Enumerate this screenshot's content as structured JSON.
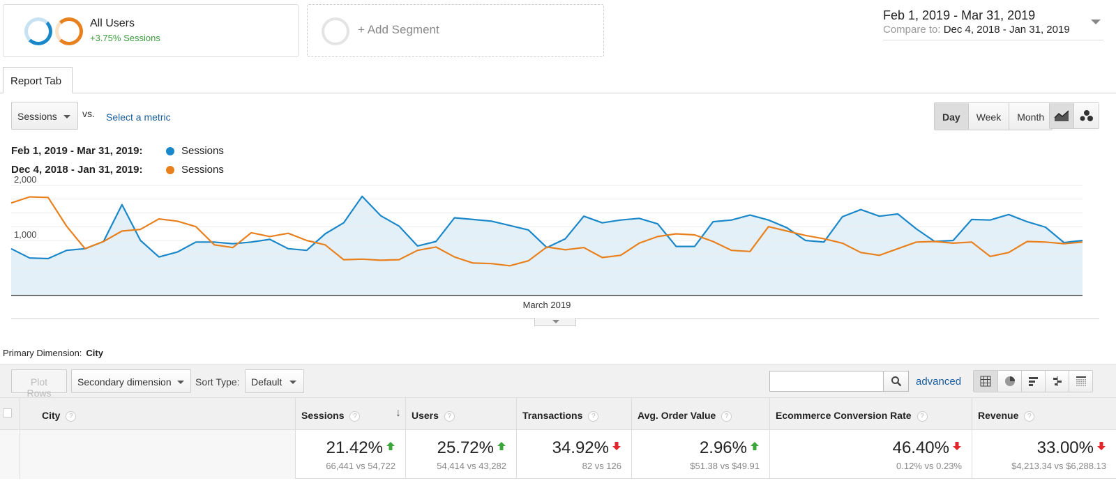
{
  "segments": {
    "active": {
      "title": "All Users",
      "subtitle": "+3.75% Sessions"
    },
    "add_label": "+ Add Segment"
  },
  "date_range": {
    "main": "Feb 1, 2019 - Mar 31, 2019",
    "compare_label": "Compare to:",
    "compare_range": "Dec 4, 2018 - Jan 31, 2019"
  },
  "tabs": {
    "report": "Report Tab"
  },
  "metric_bar": {
    "primary_metric": "Sessions",
    "vs": "vs.",
    "select_metric": "Select a metric",
    "granularity": [
      "Day",
      "Week",
      "Month"
    ],
    "active_granularity": "Day"
  },
  "legend": [
    {
      "range": "Feb 1, 2019 - Mar 31, 2019:",
      "series": "Sessions",
      "color": "#1a87c9"
    },
    {
      "range": "Dec 4, 2018 - Jan 31, 2019:",
      "series": "Sessions",
      "color": "#e8801e"
    }
  ],
  "chart_data": {
    "type": "line",
    "xlabel": "March 2019",
    "ylim": [
      0,
      2100
    ],
    "y_ticks": [
      "2,000",
      "1,000"
    ],
    "y_tick_values": [
      2000,
      1000
    ],
    "grid": true,
    "series": [
      {
        "name": "Sessions",
        "color": "#1a87c9",
        "fill": true,
        "values": [
          850,
          680,
          670,
          820,
          850,
          980,
          1650,
          1000,
          700,
          790,
          970,
          970,
          940,
          970,
          1020,
          850,
          820,
          1120,
          1320,
          1800,
          1450,
          1260,
          900,
          980,
          1410,
          1380,
          1350,
          1270,
          1190,
          870,
          1030,
          1440,
          1320,
          1370,
          1400,
          1300,
          890,
          890,
          1340,
          1370,
          1460,
          1370,
          1230,
          1000,
          970,
          1430,
          1560,
          1440,
          1480,
          1210,
          980,
          1000,
          1380,
          1370,
          1470,
          1340,
          1240,
          960,
          1000
        ]
      },
      {
        "name": "Sessions",
        "color": "#e8801e",
        "fill": false,
        "values": [
          1680,
          1790,
          1780,
          1260,
          850,
          980,
          1170,
          1200,
          1390,
          1350,
          1250,
          920,
          870,
          1140,
          1070,
          1130,
          1000,
          920,
          650,
          660,
          640,
          650,
          820,
          880,
          700,
          590,
          580,
          540,
          630,
          880,
          830,
          870,
          690,
          730,
          950,
          1070,
          1120,
          1100,
          980,
          820,
          800,
          1250,
          1170,
          1090,
          1030,
          950,
          780,
          730,
          850,
          970,
          980,
          950,
          970,
          710,
          780,
          980,
          970,
          940,
          970
        ]
      }
    ]
  },
  "primary_dimension": {
    "label": "Primary Dimension:",
    "value": "City"
  },
  "toolbar": {
    "plot_rows": "Plot Rows",
    "secondary_dimension": "Secondary dimension",
    "sort_type_label": "Sort Type:",
    "sort_type_value": "Default",
    "search_value": "",
    "advanced": "advanced"
  },
  "table": {
    "columns": [
      "City",
      "Sessions",
      "Users",
      "Transactions",
      "Avg. Order Value",
      "Ecommerce Conversion Rate",
      "Revenue"
    ],
    "summary": [
      {
        "pct": "21.42%",
        "direction": "up",
        "compare": "66,441 vs 54,722"
      },
      {
        "pct": "25.72%",
        "direction": "up",
        "compare": "54,414 vs 43,282"
      },
      {
        "pct": "34.92%",
        "direction": "down",
        "compare": "82 vs 126"
      },
      {
        "pct": "2.96%",
        "direction": "up",
        "compare": "$51.38 vs $49.91"
      },
      {
        "pct": "46.40%",
        "direction": "down",
        "compare": "0.12% vs 0.23%"
      },
      {
        "pct": "33.00%",
        "direction": "down",
        "compare": "$4,213.34 vs $6,288.13"
      }
    ],
    "colors": {
      "up": "#3aa63a",
      "down": "#e3262c"
    }
  }
}
